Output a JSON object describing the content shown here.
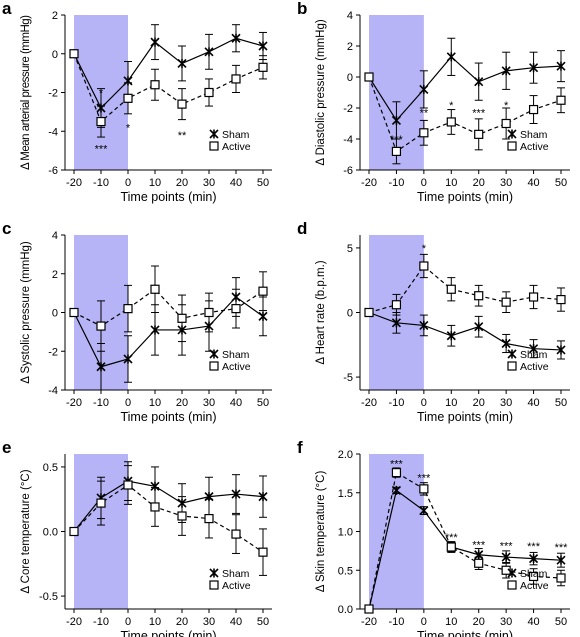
{
  "figure": {
    "shade_color": "#b6b4f6",
    "sham_marker": "x-cross",
    "active_marker": "open-square"
  },
  "chart_data": [
    {
      "letter": "a",
      "type": "line",
      "ylabel": "Δ Mean arterial pressure (mmHg)",
      "xlabel": "Time points (min)",
      "x": [
        -20,
        -10,
        0,
        10,
        20,
        30,
        40,
        50
      ],
      "xticks": [
        "-20",
        "-10",
        "0",
        "10",
        "20",
        "30",
        "40",
        "50"
      ],
      "ylim": [
        -6,
        2
      ],
      "yticks": [
        "-6",
        "-4",
        "-2",
        "0",
        "2"
      ],
      "shade": [
        -20,
        0
      ],
      "series": [
        {
          "name": "Sham",
          "style": "solid",
          "marker": "x-cross",
          "values": [
            0,
            -2.8,
            -1.4,
            0.6,
            -0.5,
            0.1,
            0.8,
            0.4
          ],
          "errors": [
            0,
            1.0,
            1.0,
            0.9,
            0.9,
            0.9,
            0.7,
            0.7
          ]
        },
        {
          "name": "Active",
          "style": "dashed",
          "marker": "open-square",
          "values": [
            0,
            -3.5,
            -2.3,
            -1.6,
            -2.6,
            -2.0,
            -1.3,
            -0.7
          ],
          "errors": [
            0,
            0.8,
            0.8,
            0.8,
            0.8,
            0.7,
            0.7,
            0.6
          ]
        }
      ],
      "annotations": [
        {
          "text": "*",
          "x": -10,
          "y": -2.0
        },
        {
          "text": "***",
          "x": -10,
          "y": -4.9
        },
        {
          "text": "*",
          "x": 0,
          "y": -3.8
        },
        {
          "text": "**",
          "x": 20,
          "y": -4.2
        }
      ],
      "legend_position": "bottom-right"
    },
    {
      "letter": "b",
      "type": "line",
      "ylabel": "Δ Diastolic pressure (mmHg)",
      "xlabel": "Time points (min)",
      "x": [
        -20,
        -10,
        0,
        10,
        20,
        30,
        40,
        50
      ],
      "xticks": [
        "-20",
        "-10",
        "0",
        "10",
        "20",
        "30",
        "40",
        "50"
      ],
      "ylim": [
        -6,
        4
      ],
      "yticks": [
        "-6",
        "-4",
        "-2",
        "0",
        "2",
        "4"
      ],
      "shade": [
        -20,
        0
      ],
      "series": [
        {
          "name": "Sham",
          "style": "solid",
          "marker": "x-cross",
          "values": [
            0,
            -2.8,
            -0.8,
            1.3,
            -0.3,
            0.4,
            0.6,
            0.7
          ],
          "errors": [
            0,
            1.2,
            1.2,
            1.2,
            1.2,
            1.2,
            1.0,
            1.0
          ]
        },
        {
          "name": "Active",
          "style": "dashed",
          "marker": "open-square",
          "values": [
            0,
            -4.8,
            -3.6,
            -2.9,
            -3.7,
            -3.0,
            -2.1,
            -1.5
          ],
          "errors": [
            0,
            0.8,
            0.8,
            0.8,
            1.0,
            1.0,
            0.9,
            0.8
          ]
        }
      ],
      "annotations": [
        {
          "text": "***",
          "x": -10,
          "y": -4.0
        },
        {
          "text": "**",
          "x": 0,
          "y": -2.3
        },
        {
          "text": "*",
          "x": 10,
          "y": -1.8
        },
        {
          "text": "***",
          "x": 20,
          "y": -2.3
        },
        {
          "text": "*",
          "x": 30,
          "y": -1.8
        }
      ],
      "legend_position": "bottom-right"
    },
    {
      "letter": "c",
      "type": "line",
      "ylabel": "Δ Systolic pressure (mmHg)",
      "xlabel": "Time points (min)",
      "x": [
        -20,
        -10,
        0,
        10,
        20,
        30,
        40,
        50
      ],
      "xticks": [
        "-20",
        "-10",
        "0",
        "10",
        "20",
        "30",
        "40",
        "50"
      ],
      "ylim": [
        -4,
        4
      ],
      "yticks": [
        "-4",
        "-2",
        "0",
        "2",
        "4"
      ],
      "shade": [
        -20,
        0
      ],
      "series": [
        {
          "name": "Sham",
          "style": "solid",
          "marker": "x-cross",
          "values": [
            0,
            -2.8,
            -2.4,
            -0.9,
            -0.9,
            -0.7,
            0.8,
            -0.2
          ],
          "errors": [
            0,
            1.2,
            1.2,
            1.3,
            1.3,
            1.3,
            1.0,
            1.0
          ]
        },
        {
          "name": "Active",
          "style": "dashed",
          "marker": "open-square",
          "values": [
            0,
            -0.7,
            0.2,
            1.2,
            -0.3,
            0.0,
            0.2,
            1.1
          ],
          "errors": [
            0,
            1.3,
            1.2,
            1.2,
            1.2,
            1.0,
            1.0,
            1.0
          ]
        }
      ],
      "annotations": [],
      "legend_position": "bottom-right"
    },
    {
      "letter": "d",
      "type": "line",
      "ylabel": "Δ Heart rate (b.p.m.)",
      "xlabel": "Time points (min)",
      "x": [
        -20,
        -10,
        0,
        10,
        20,
        30,
        40,
        50
      ],
      "xticks": [
        "-20",
        "-10",
        "0",
        "10",
        "20",
        "30",
        "40",
        "50"
      ],
      "ylim": [
        -6,
        6
      ],
      "yticks": [
        "-5",
        "0",
        "5"
      ],
      "shade": [
        -20,
        0
      ],
      "series": [
        {
          "name": "Sham",
          "style": "solid",
          "marker": "x-cross",
          "values": [
            0,
            -0.8,
            -1.0,
            -1.8,
            -1.1,
            -2.4,
            -2.8,
            -2.9
          ],
          "errors": [
            0,
            0.8,
            0.8,
            0.8,
            0.8,
            0.7,
            0.7,
            0.7
          ]
        },
        {
          "name": "Active",
          "style": "dashed",
          "marker": "open-square",
          "values": [
            0,
            0.6,
            3.6,
            1.8,
            1.3,
            0.8,
            1.2,
            1.0
          ],
          "errors": [
            0,
            0.8,
            0.9,
            0.9,
            0.8,
            0.8,
            0.9,
            0.9
          ]
        }
      ],
      "annotations": [
        {
          "text": "*",
          "x": 0,
          "y": 5.0
        }
      ],
      "legend_position": "bottom-right"
    },
    {
      "letter": "e",
      "type": "line",
      "ylabel": "Δ Core temperature (°C)",
      "xlabel": "Time points (min)",
      "x": [
        -20,
        -10,
        0,
        10,
        20,
        30,
        40,
        50
      ],
      "xticks": [
        "-20",
        "-10",
        "0",
        "10",
        "20",
        "30",
        "40",
        "50"
      ],
      "ylim": [
        -0.6,
        0.6
      ],
      "yticks": [
        "-0.5",
        "0.0",
        "0.5"
      ],
      "shade": [
        -20,
        0
      ],
      "series": [
        {
          "name": "Sham",
          "style": "solid",
          "marker": "x-cross",
          "values": [
            0,
            0.26,
            0.39,
            0.35,
            0.22,
            0.27,
            0.29,
            0.27
          ],
          "errors": [
            0,
            0.16,
            0.15,
            0.15,
            0.15,
            0.15,
            0.15,
            0.16
          ]
        },
        {
          "name": "Active",
          "style": "dashed",
          "marker": "open-square",
          "values": [
            0,
            0.22,
            0.36,
            0.19,
            0.12,
            0.1,
            -0.02,
            -0.16
          ],
          "errors": [
            0,
            0.17,
            0.15,
            0.15,
            0.15,
            0.15,
            0.15,
            0.18
          ]
        }
      ],
      "annotations": [],
      "legend_position": "bottom-right"
    },
    {
      "letter": "f",
      "type": "line",
      "ylabel": "Δ Skin temperature (°C)",
      "xlabel": "Time points (min)",
      "x": [
        -20,
        -10,
        0,
        10,
        20,
        30,
        40,
        50
      ],
      "xticks": [
        "-20",
        "-10",
        "0",
        "10",
        "20",
        "30",
        "40",
        "50"
      ],
      "ylim": [
        0,
        2.0
      ],
      "yticks": [
        "0.0",
        "0.5",
        "1.0",
        "1.5",
        "2.0"
      ],
      "shade": [
        -20,
        0
      ],
      "series": [
        {
          "name": "Sham",
          "style": "solid",
          "marker": "x-cross",
          "values": [
            0,
            1.53,
            1.27,
            0.8,
            0.7,
            0.67,
            0.65,
            0.63
          ],
          "errors": [
            0,
            0.04,
            0.05,
            0.06,
            0.08,
            0.08,
            0.08,
            0.09
          ]
        },
        {
          "name": "Active",
          "style": "dashed",
          "marker": "open-square",
          "values": [
            0,
            1.76,
            1.55,
            0.8,
            0.59,
            0.5,
            0.42,
            0.4
          ],
          "errors": [
            0,
            0.06,
            0.08,
            0.07,
            0.08,
            0.1,
            0.1,
            0.1
          ]
        }
      ],
      "annotations": [
        {
          "text": "***",
          "x": -10,
          "y": 1.88
        },
        {
          "text": "***",
          "x": 0,
          "y": 1.7
        },
        {
          "text": "***",
          "x": 10,
          "y": 0.93
        },
        {
          "text": "***",
          "x": 20,
          "y": 0.83
        },
        {
          "text": "***",
          "x": 30,
          "y": 0.82
        },
        {
          "text": "***",
          "x": 40,
          "y": 0.81
        },
        {
          "text": "***",
          "x": 50,
          "y": 0.8
        }
      ],
      "legend_position": "bottom-right"
    }
  ]
}
